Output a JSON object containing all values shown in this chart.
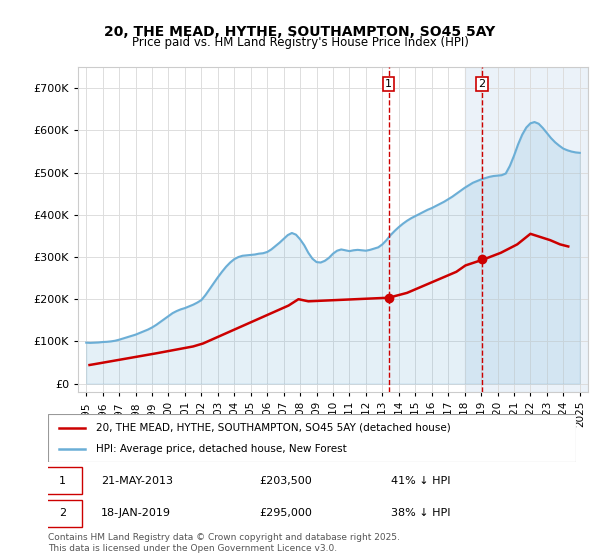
{
  "title": "20, THE MEAD, HYTHE, SOUTHAMPTON, SO45 5AY",
  "subtitle": "Price paid vs. HM Land Registry's House Price Index (HPI)",
  "ylabel": "",
  "background_color": "#ffffff",
  "plot_bg_color": "#ffffff",
  "grid_color": "#dddddd",
  "hpi_color": "#6baed6",
  "hpi_fill_color": "#c6dbef",
  "price_color": "#cc0000",
  "marker_color_1": "#cc0000",
  "marker_color_2": "#cc0000",
  "vline_color": "#cc0000",
  "vline_style": "--",
  "purchase1_date_idx": 18.4,
  "purchase2_date_idx": 24.1,
  "purchase1_label": "1",
  "purchase2_label": "2",
  "legend_entry1": "20, THE MEAD, HYTHE, SOUTHAMPTON, SO45 5AY (detached house)",
  "legend_entry2": "HPI: Average price, detached house, New Forest",
  "annotation1_date": "21-MAY-2013",
  "annotation1_price": "£203,500",
  "annotation1_pct": "41% ↓ HPI",
  "annotation2_date": "18-JAN-2019",
  "annotation2_price": "£295,000",
  "annotation2_pct": "38% ↓ HPI",
  "footer": "Contains HM Land Registry data © Crown copyright and database right 2025.\nThis data is licensed under the Open Government Licence v3.0.",
  "xlim_left": 1994.5,
  "xlim_right": 2025.5,
  "ylim_bottom": -20000,
  "ylim_top": 750000,
  "yticks": [
    0,
    100000,
    200000,
    300000,
    400000,
    500000,
    600000,
    700000
  ],
  "ytick_labels": [
    "£0",
    "£100K",
    "£200K",
    "£300K",
    "£400K",
    "£500K",
    "£600K",
    "£700K"
  ],
  "xticks": [
    1995,
    1996,
    1997,
    1998,
    1999,
    2000,
    2001,
    2002,
    2003,
    2004,
    2005,
    2006,
    2007,
    2008,
    2009,
    2010,
    2011,
    2012,
    2013,
    2014,
    2015,
    2016,
    2017,
    2018,
    2019,
    2020,
    2021,
    2022,
    2023,
    2024,
    2025
  ],
  "hpi_x": [
    1995.0,
    1995.25,
    1995.5,
    1995.75,
    1996.0,
    1996.25,
    1996.5,
    1996.75,
    1997.0,
    1997.25,
    1997.5,
    1997.75,
    1998.0,
    1998.25,
    1998.5,
    1998.75,
    1999.0,
    1999.25,
    1999.5,
    1999.75,
    2000.0,
    2000.25,
    2000.5,
    2000.75,
    2001.0,
    2001.25,
    2001.5,
    2001.75,
    2002.0,
    2002.25,
    2002.5,
    2002.75,
    2003.0,
    2003.25,
    2003.5,
    2003.75,
    2004.0,
    2004.25,
    2004.5,
    2004.75,
    2005.0,
    2005.25,
    2005.5,
    2005.75,
    2006.0,
    2006.25,
    2006.5,
    2006.75,
    2007.0,
    2007.25,
    2007.5,
    2007.75,
    2008.0,
    2008.25,
    2008.5,
    2008.75,
    2009.0,
    2009.25,
    2009.5,
    2009.75,
    2010.0,
    2010.25,
    2010.5,
    2010.75,
    2011.0,
    2011.25,
    2011.5,
    2011.75,
    2012.0,
    2012.25,
    2012.5,
    2012.75,
    2013.0,
    2013.25,
    2013.5,
    2013.75,
    2014.0,
    2014.25,
    2014.5,
    2014.75,
    2015.0,
    2015.25,
    2015.5,
    2015.75,
    2016.0,
    2016.25,
    2016.5,
    2016.75,
    2017.0,
    2017.25,
    2017.5,
    2017.75,
    2018.0,
    2018.25,
    2018.5,
    2018.75,
    2019.0,
    2019.25,
    2019.5,
    2019.75,
    2020.0,
    2020.25,
    2020.5,
    2020.75,
    2021.0,
    2021.25,
    2021.5,
    2021.75,
    2022.0,
    2022.25,
    2022.5,
    2022.75,
    2023.0,
    2023.25,
    2023.5,
    2023.75,
    2024.0,
    2024.25,
    2024.5,
    2024.75,
    2025.0
  ],
  "hpi_y": [
    97000,
    96500,
    97000,
    97500,
    98500,
    99000,
    100000,
    101500,
    104000,
    107000,
    110000,
    113000,
    116000,
    120000,
    124000,
    128000,
    133000,
    139000,
    146000,
    153000,
    160000,
    167000,
    172000,
    176000,
    179000,
    183000,
    187000,
    192000,
    198000,
    210000,
    224000,
    238000,
    252000,
    265000,
    277000,
    287000,
    295000,
    300000,
    303000,
    304000,
    305000,
    306000,
    308000,
    309000,
    312000,
    318000,
    326000,
    334000,
    343000,
    352000,
    357000,
    353000,
    342000,
    328000,
    310000,
    296000,
    288000,
    287000,
    291000,
    298000,
    308000,
    315000,
    318000,
    316000,
    314000,
    316000,
    317000,
    316000,
    315000,
    317000,
    320000,
    323000,
    330000,
    340000,
    352000,
    362000,
    371000,
    379000,
    386000,
    392000,
    397000,
    402000,
    407000,
    412000,
    416000,
    421000,
    426000,
    431000,
    437000,
    443000,
    450000,
    457000,
    464000,
    470000,
    476000,
    480000,
    484000,
    487000,
    490000,
    492000,
    493000,
    494000,
    498000,
    516000,
    540000,
    567000,
    590000,
    607000,
    617000,
    620000,
    616000,
    606000,
    594000,
    582000,
    572000,
    564000,
    557000,
    553000,
    550000,
    548000,
    547000
  ],
  "price_x": [
    1995.2,
    1995.5,
    1999.3,
    2001.5,
    2002.1,
    2007.3,
    2007.9,
    2008.5,
    2013.38,
    2014.5,
    2017.5,
    2018.05,
    2019.2,
    2020.2,
    2021.2,
    2022.0,
    2023.2,
    2023.8,
    2024.3
  ],
  "price_y": [
    44000,
    46000,
    72000,
    88000,
    95000,
    185000,
    200000,
    195000,
    203500,
    215000,
    265000,
    280000,
    295000,
    310000,
    330000,
    355000,
    340000,
    330000,
    325000
  ],
  "purchase1_x": 2013.38,
  "purchase1_y": 203500,
  "purchase2_x": 2019.05,
  "purchase2_y": 295000,
  "shade_start": 2018.05,
  "shade_end": 2025.0
}
